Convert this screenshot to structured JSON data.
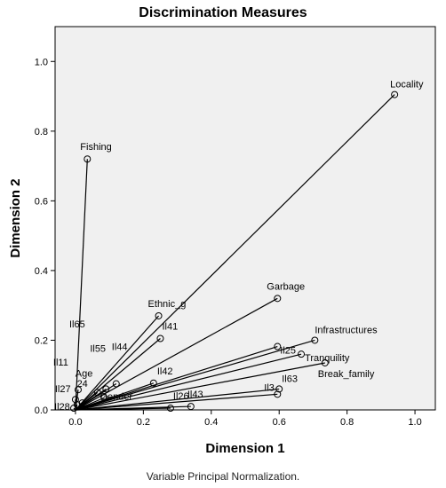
{
  "chart_data": {
    "type": "scatter",
    "title": "Discrimination Measures",
    "xlabel": "Dimension 1",
    "ylabel": "Dimension 2",
    "footnote": "Variable Principal Normalization.",
    "xlim": [
      -0.06,
      1.06
    ],
    "ylim": [
      0.0,
      1.1
    ],
    "xticks": [
      "0.0",
      "0.2",
      "0.4",
      "0.6",
      "0.8",
      "1.0"
    ],
    "yticks": [
      "0.0",
      "0.2",
      "0.4",
      "0.6",
      "0.8",
      "1.0"
    ],
    "grid": false,
    "background_color": "#f0f0f0",
    "line_color": "#000000",
    "points": [
      {
        "label": "Locality",
        "x": 0.94,
        "y": 0.905
      },
      {
        "label": "Fishing",
        "x": 0.035,
        "y": 0.72
      },
      {
        "label": "Garbage",
        "x": 0.595,
        "y": 0.32
      },
      {
        "label": "Ethnic_g",
        "x": 0.245,
        "y": 0.27
      },
      {
        "label": "Infrastructures",
        "x": 0.705,
        "y": 0.2
      },
      {
        "label": "Il41",
        "x": 0.25,
        "y": 0.205
      },
      {
        "label": "Il25",
        "x": 0.595,
        "y": 0.182
      },
      {
        "label": "Tranquility",
        "x": 0.665,
        "y": 0.16
      },
      {
        "label": "Break_family",
        "x": 0.735,
        "y": 0.135
      },
      {
        "label": "Il42",
        "x": 0.23,
        "y": 0.077
      },
      {
        "label": "Il63",
        "x": 0.6,
        "y": 0.06
      },
      {
        "label": "Il3",
        "x": 0.595,
        "y": 0.045
      },
      {
        "label": "Il26",
        "x": 0.28,
        "y": 0.005
      },
      {
        "label": "Il43",
        "x": 0.34,
        "y": 0.01
      },
      {
        "label": "Il65",
        "x": 0.008,
        "y": 0.058
      },
      {
        "label": "Il55",
        "x": 0.09,
        "y": 0.06
      },
      {
        "label": "Il44",
        "x": 0.12,
        "y": 0.075
      },
      {
        "label": "Age",
        "x": 0.065,
        "y": 0.05
      },
      {
        "label": "Il11",
        "x": 0.0,
        "y": 0.03
      },
      {
        "label": "Il27",
        "x": 0.005,
        "y": 0.015
      },
      {
        "label": "24",
        "x": 0.02,
        "y": 0.02
      },
      {
        "label": "Il28",
        "x": -0.005,
        "y": 0.005
      },
      {
        "label": "Gender",
        "x": 0.085,
        "y": 0.035
      }
    ],
    "label_offsets": {
      "Locality": [
        -5,
        -8
      ],
      "Fishing": [
        -8,
        -10
      ],
      "Garbage": [
        -12,
        -10
      ],
      "Ethnic_g": [
        -12,
        -10
      ],
      "Infrastructures": [
        0,
        -8
      ],
      "Il41": [
        2,
        -10
      ],
      "Il25": [
        3,
        8
      ],
      "Tranquility": [
        4,
        8
      ],
      "Break_family": [
        -8,
        16
      ],
      "Il42": [
        4,
        -10
      ],
      "Il63": [
        3,
        -8
      ],
      "Il3": [
        -15,
        -4
      ],
      "Il26": [
        3,
        -10
      ],
      "Il43": [
        -4,
        -10
      ],
      "Il65": [
        -10,
        -70
      ],
      "Il55": [
        -18,
        -42
      ],
      "Il44": [
        -5,
        -38
      ],
      "Age": [
        -25,
        -18
      ],
      "Il11": [
        -25,
        -38
      ],
      "Il27": [
        -25,
        -14
      ],
      "24": [
        -6,
        -18
      ],
      "Il28": [
        -22,
        2
      ],
      "Gender": [
        -5,
        2
      ]
    }
  }
}
